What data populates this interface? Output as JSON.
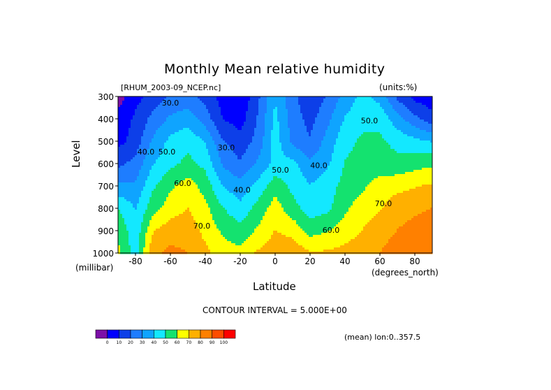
{
  "chart_data": {
    "type": "heatmap",
    "title": "Monthly Mean relative humidity",
    "source_label": "[RHUM_2003-09_NCEP.nc]",
    "units_label": "(units:%)",
    "xlabel": "Latitude",
    "x_units_label": "(degrees_north)",
    "ylabel": "Level",
    "y_units_label": "(millibar)",
    "xlim": [
      -90,
      90
    ],
    "ylim": [
      1000,
      300
    ],
    "x_ticks": [
      -80,
      -60,
      -40,
      -20,
      0,
      20,
      40,
      60,
      80
    ],
    "y_ticks": [
      300,
      400,
      500,
      600,
      700,
      800,
      900,
      1000
    ],
    "contour_interval_label": "CONTOUR INTERVAL = 5.000E+00",
    "mean_label": "(mean) lon:0..357.5",
    "contour_labels": [
      {
        "text": "30.0",
        "lat": -60,
        "lev": 340
      },
      {
        "text": "40.0",
        "lat": -74,
        "lev": 560
      },
      {
        "text": "50.0",
        "lat": -62,
        "lev": 560
      },
      {
        "text": "60.0",
        "lat": -53,
        "lev": 700
      },
      {
        "text": "70.0",
        "lat": -42,
        "lev": 890
      },
      {
        "text": "30.0",
        "lat": -28,
        "lev": 540
      },
      {
        "text": "40.0",
        "lat": -19,
        "lev": 730
      },
      {
        "text": "50.0",
        "lat": 3,
        "lev": 640
      },
      {
        "text": "40.0",
        "lat": 25,
        "lev": 620
      },
      {
        "text": "60.0",
        "lat": 32,
        "lev": 910
      },
      {
        "text": "50.0",
        "lat": 54,
        "lev": 420
      },
      {
        "text": "70.0",
        "lat": 62,
        "lev": 790
      }
    ],
    "lat": [
      -90,
      -80,
      -70,
      -60,
      -50,
      -40,
      -30,
      -20,
      -10,
      0,
      10,
      20,
      30,
      40,
      50,
      60,
      70,
      80,
      90
    ],
    "levels": [
      300,
      400,
      500,
      600,
      700,
      800,
      900,
      1000
    ],
    "values": [
      [
        5,
        15,
        22,
        28,
        30,
        24,
        14,
        10,
        25,
        45,
        30,
        20,
        28,
        40,
        48,
        42,
        25,
        15,
        12
      ],
      [
        12,
        20,
        30,
        38,
        42,
        32,
        18,
        14,
        28,
        48,
        32,
        24,
        34,
        46,
        52,
        52,
        40,
        30,
        22
      ],
      [
        15,
        22,
        38,
        48,
        52,
        45,
        28,
        22,
        30,
        50,
        34,
        28,
        40,
        52,
        56,
        56,
        52,
        48,
        45
      ],
      [
        25,
        30,
        45,
        52,
        57,
        52,
        35,
        28,
        38,
        48,
        48,
        38,
        44,
        55,
        58,
        58,
        57,
        60,
        62
      ],
      [
        38,
        38,
        53,
        62,
        68,
        60,
        45,
        40,
        48,
        60,
        52,
        46,
        50,
        58,
        62,
        68,
        70,
        72,
        74
      ],
      [
        55,
        45,
        60,
        68,
        73,
        66,
        55,
        48,
        58,
        68,
        58,
        50,
        52,
        62,
        68,
        72,
        78,
        80,
        82
      ],
      [
        62,
        48,
        72,
        78,
        78,
        70,
        62,
        58,
        65,
        73,
        70,
        60,
        63,
        68,
        73,
        78,
        82,
        85,
        87
      ],
      [
        66,
        50,
        80,
        84,
        82,
        75,
        68,
        66,
        74,
        78,
        78,
        74,
        74,
        76,
        78,
        82,
        86,
        88,
        90
      ]
    ],
    "colorbar": {
      "ticks": [
        "0",
        "10",
        "20",
        "30",
        "40",
        "50",
        "60",
        "70",
        "80",
        "90",
        "100"
      ],
      "colors": [
        "#7d0fa8",
        "#0000ff",
        "#0d3fe8",
        "#1e7dff",
        "#0fa4ff",
        "#13e8ff",
        "#14e26f",
        "#ffff00",
        "#ffb000",
        "#ff8000",
        "#ff4c00",
        "#ff0000"
      ]
    }
  }
}
